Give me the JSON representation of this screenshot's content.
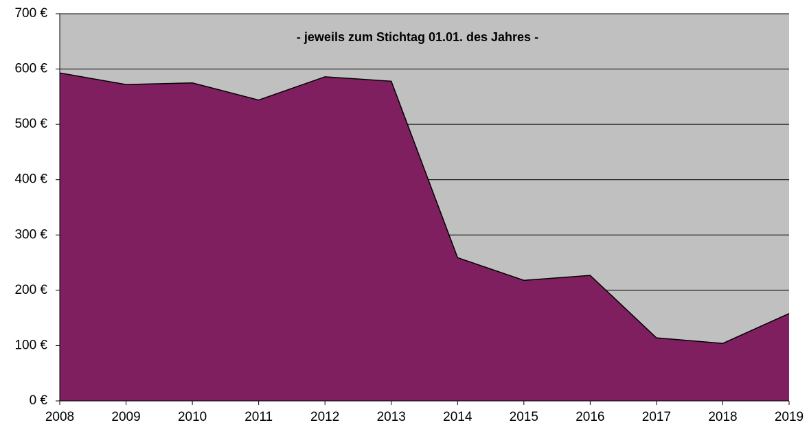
{
  "chart_data": {
    "type": "area",
    "title": "- jeweils zum Stichtag 01.01. des Jahres -",
    "categories": [
      "2008",
      "2009",
      "2010",
      "2011",
      "2012",
      "2013",
      "2014",
      "2015",
      "2016",
      "2017",
      "2018",
      "2019"
    ],
    "values": [
      593,
      572,
      575,
      544,
      586,
      578,
      259,
      218,
      227,
      114,
      104,
      158
    ],
    "color": "#7f1f5f",
    "background": "#c0c0c0",
    "ylim": [
      0,
      700
    ],
    "yticks": [
      {
        "value": 0,
        "label": "0 €"
      },
      {
        "value": 100,
        "label": "100 €"
      },
      {
        "value": 200,
        "label": "200 €"
      },
      {
        "value": 300,
        "label": "300 €"
      },
      {
        "value": 400,
        "label": "400 €"
      },
      {
        "value": 500,
        "label": "500 €"
      },
      {
        "value": 600,
        "label": "600 €"
      },
      {
        "value": 700,
        "label": "700 €"
      }
    ],
    "grid": true
  }
}
